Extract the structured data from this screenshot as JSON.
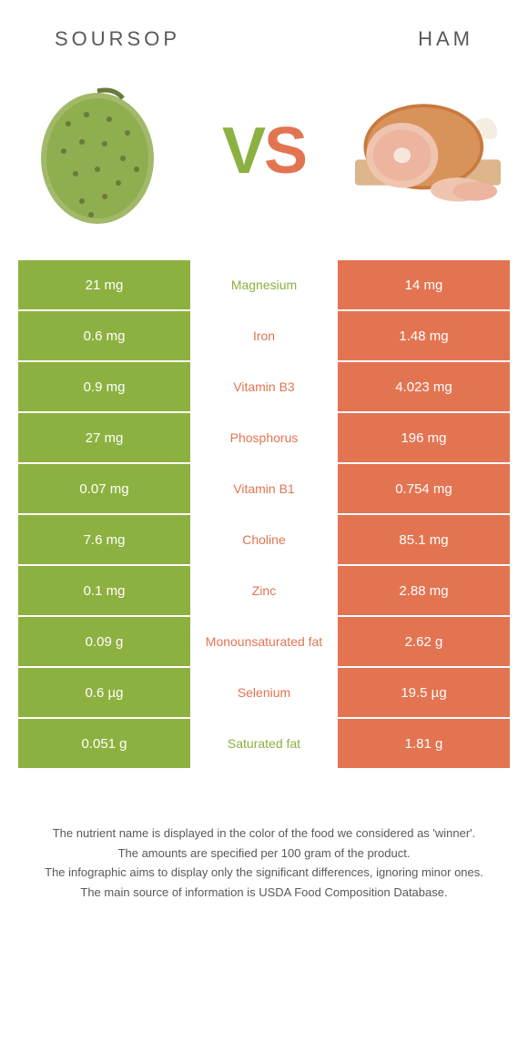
{
  "colors": {
    "left": "#8db140",
    "right": "#e37452",
    "text": "#595959",
    "white": "#ffffff"
  },
  "fonts": {
    "header_size": 22,
    "vs_size": 72,
    "cell_size": 15,
    "mid_size": 14,
    "footer_size": 13
  },
  "header": {
    "left": "SOURSOP",
    "right": "HAM"
  },
  "vs": {
    "v": "V",
    "s": "S"
  },
  "rows": [
    {
      "left": "21 mg",
      "mid": "Magnesium",
      "right": "14 mg",
      "winner": "left"
    },
    {
      "left": "0.6 mg",
      "mid": "Iron",
      "right": "1.48 mg",
      "winner": "right"
    },
    {
      "left": "0.9 mg",
      "mid": "Vitamin B3",
      "right": "4.023 mg",
      "winner": "right"
    },
    {
      "left": "27 mg",
      "mid": "Phosphorus",
      "right": "196 mg",
      "winner": "right"
    },
    {
      "left": "0.07 mg",
      "mid": "Vitamin B1",
      "right": "0.754 mg",
      "winner": "right"
    },
    {
      "left": "7.6 mg",
      "mid": "Choline",
      "right": "85.1 mg",
      "winner": "right"
    },
    {
      "left": "0.1 mg",
      "mid": "Zinc",
      "right": "2.88 mg",
      "winner": "right"
    },
    {
      "left": "0.09 g",
      "mid": "Monounsaturated fat",
      "right": "2.62 g",
      "winner": "right"
    },
    {
      "left": "0.6 µg",
      "mid": "Selenium",
      "right": "19.5 µg",
      "winner": "right"
    },
    {
      "left": "0.051 g",
      "mid": "Saturated fat",
      "right": "1.81 g",
      "winner": "left"
    }
  ],
  "footer": [
    "The nutrient name is displayed in the color of the food we considered as 'winner'.",
    "The amounts are specified per 100 gram of the product.",
    "The infographic aims to display only the significant differences, ignoring minor ones.",
    "The main source of information is USDA Food Composition Database."
  ]
}
